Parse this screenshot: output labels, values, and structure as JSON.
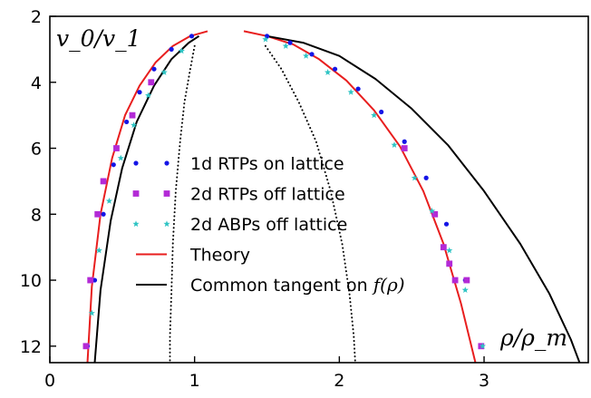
{
  "chart_data": {
    "type": "scatter",
    "xlabel": "ρ/ρ_m",
    "ylabel": "v_0/v_1",
    "xlim": [
      0,
      3.72
    ],
    "ylim": [
      12.5,
      2
    ],
    "y_inverted": true,
    "x_ticks": [
      "0",
      "1",
      "2",
      "3"
    ],
    "y_ticks": [
      "2",
      "4",
      "6",
      "8",
      "10",
      "12"
    ],
    "x_tick_values": [
      0,
      1,
      2,
      3
    ],
    "y_tick_values": [
      2,
      4,
      6,
      8,
      10,
      12
    ],
    "grid": false,
    "legend_position": "center",
    "legend_items": [
      {
        "label": "1d RTPs on lattice",
        "marker": "circle",
        "color": "#1515e6"
      },
      {
        "label": "2d RTPs off lattice",
        "marker": "square",
        "color": "#b32ad6"
      },
      {
        "label": "2d ABPs off lattice",
        "marker": "star",
        "color": "#2ec4c4"
      },
      {
        "label": "Theory",
        "marker": "line",
        "color": "#e81e1e"
      },
      {
        "label": "Common tangent on ",
        "label_math": "f(ρ)",
        "marker": "line",
        "color": "#000000"
      }
    ],
    "series": [
      {
        "name": "1d RTPs on lattice",
        "kind": "points",
        "marker": "circle",
        "color": "#1515e6",
        "x": [
          0.26,
          0.31,
          0.37,
          0.44,
          0.53,
          0.62,
          0.72,
          0.84,
          0.98,
          1.5,
          1.66,
          1.81,
          1.97,
          2.13,
          2.29,
          2.45,
          2.6,
          2.74,
          2.87,
          2.98
        ],
        "y": [
          12,
          10,
          8,
          6.5,
          5.2,
          4.3,
          3.6,
          3.0,
          2.6,
          2.6,
          2.8,
          3.15,
          3.6,
          4.2,
          4.9,
          5.8,
          6.9,
          8.3,
          10,
          12
        ]
      },
      {
        "name": "2d RTPs off lattice",
        "kind": "points",
        "marker": "square",
        "color": "#b32ad6",
        "x": [
          0.25,
          0.28,
          0.33,
          0.37,
          0.46,
          0.57,
          0.7,
          2.45,
          2.66,
          2.72,
          2.76,
          2.8,
          2.88,
          2.98
        ],
        "y": [
          12,
          10,
          8,
          7,
          6,
          5,
          4,
          6,
          8,
          9,
          9.5,
          10,
          10,
          12
        ]
      },
      {
        "name": "2d ABPs off lattice",
        "kind": "points",
        "marker": "star",
        "color": "#2ec4c4",
        "x": [
          0.29,
          0.34,
          0.41,
          0.49,
          0.58,
          0.68,
          0.79,
          0.91,
          1.49,
          1.63,
          1.77,
          1.92,
          2.08,
          2.24,
          2.38,
          2.52,
          2.64,
          2.76,
          2.87,
          2.99
        ],
        "y": [
          11,
          9.1,
          7.6,
          6.3,
          5.3,
          4.4,
          3.7,
          3.05,
          2.7,
          2.9,
          3.2,
          3.7,
          4.3,
          5.0,
          5.9,
          6.9,
          7.9,
          9.1,
          10.3,
          12
        ]
      },
      {
        "name": "Theory",
        "kind": "line",
        "dash": "solid",
        "color": "#e81e1e",
        "segments": [
          {
            "x": [
              0.26,
              0.29,
              0.35,
              0.43,
              0.52,
              0.62,
              0.73,
              0.85,
              0.97,
              1.09
            ],
            "y": [
              12.5,
              10.2,
              8.0,
              6.3,
              5.0,
              4.1,
              3.4,
              2.9,
              2.6,
              2.45
            ]
          },
          {
            "x": [
              1.34,
              1.5,
              1.68,
              1.86,
              2.05,
              2.24,
              2.42,
              2.58,
              2.72,
              2.84,
              2.94
            ],
            "y": [
              2.45,
              2.6,
              2.85,
              3.3,
              3.95,
              4.85,
              5.95,
              7.3,
              8.9,
              10.7,
              12.5
            ]
          }
        ]
      },
      {
        "name": "Common tangent on f(ρ)",
        "kind": "line",
        "dash": "solid",
        "color": "#000000",
        "segments": [
          {
            "x": [
              0.31,
              0.35,
              0.42,
              0.5,
              0.6,
              0.72,
              0.84,
              0.96,
              1.03
            ],
            "y": [
              12.5,
              10.3,
              8.2,
              6.6,
              5.2,
              4.1,
              3.3,
              2.8,
              2.6
            ]
          },
          {
            "x": [
              1.5,
              1.75,
              2.0,
              2.25,
              2.5,
              2.75,
              3.0,
              3.25,
              3.45,
              3.6,
              3.66
            ],
            "y": [
              2.6,
              2.8,
              3.2,
              3.9,
              4.8,
              5.9,
              7.3,
              8.9,
              10.4,
              11.8,
              12.5
            ]
          }
        ]
      },
      {
        "name": "Spinodal",
        "kind": "line",
        "dash": "dotted",
        "color": "#000000",
        "segments": [
          {
            "x": [
              1.0,
              0.97,
              0.93,
              0.9,
              0.87,
              0.85,
              0.84,
              0.83,
              0.83
            ],
            "y": [
              2.9,
              3.6,
              4.6,
              5.8,
              7.3,
              8.9,
              10.4,
              11.7,
              12.5
            ]
          },
          {
            "x": [
              1.49,
              1.6,
              1.72,
              1.84,
              1.94,
              2.02,
              2.07,
              2.1,
              2.11
            ],
            "y": [
              2.9,
              3.6,
              4.6,
              5.8,
              7.3,
              8.9,
              10.4,
              11.7,
              12.5
            ]
          }
        ]
      }
    ]
  }
}
